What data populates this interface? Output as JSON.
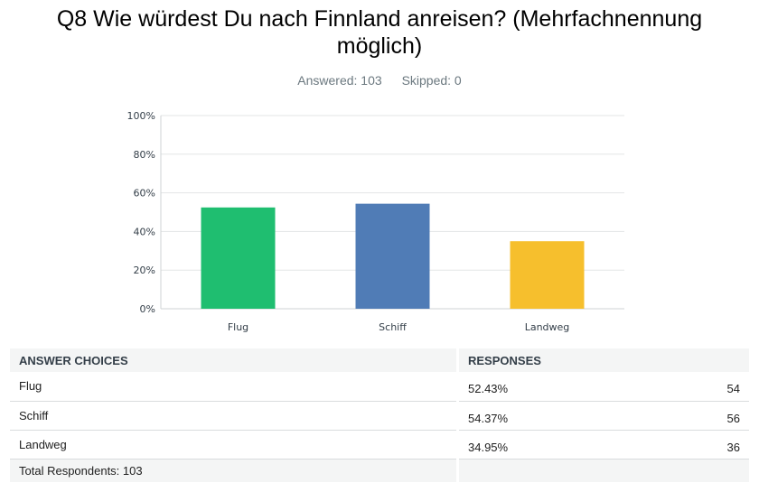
{
  "question": {
    "title_line1": "Q8 Wie würdest Du nach Finnland anreisen? (Mehrfachnennung",
    "title_line2": "möglich)",
    "answered": "Answered: 103",
    "skipped": "Skipped: 0"
  },
  "chart_data": {
    "type": "bar",
    "categories": [
      "Flug",
      "Schiff",
      "Landweg"
    ],
    "values": [
      52.43,
      54.37,
      34.95
    ],
    "ylim": [
      0,
      100
    ],
    "yticks": [
      "0%",
      "20%",
      "40%",
      "60%",
      "80%",
      "100%"
    ],
    "colors": [
      "#1fbe70",
      "#507cb6",
      "#f6bf2d"
    ],
    "grid": true
  },
  "table": {
    "header_choices": "ANSWER CHOICES",
    "header_responses": "RESPONSES",
    "rows": [
      {
        "choice": "Flug",
        "percent": "52.43%",
        "count": "54"
      },
      {
        "choice": "Schiff",
        "percent": "54.37%",
        "count": "56"
      },
      {
        "choice": "Landweg",
        "percent": "34.95%",
        "count": "36"
      }
    ],
    "footer": "Total Respondents: 103"
  }
}
